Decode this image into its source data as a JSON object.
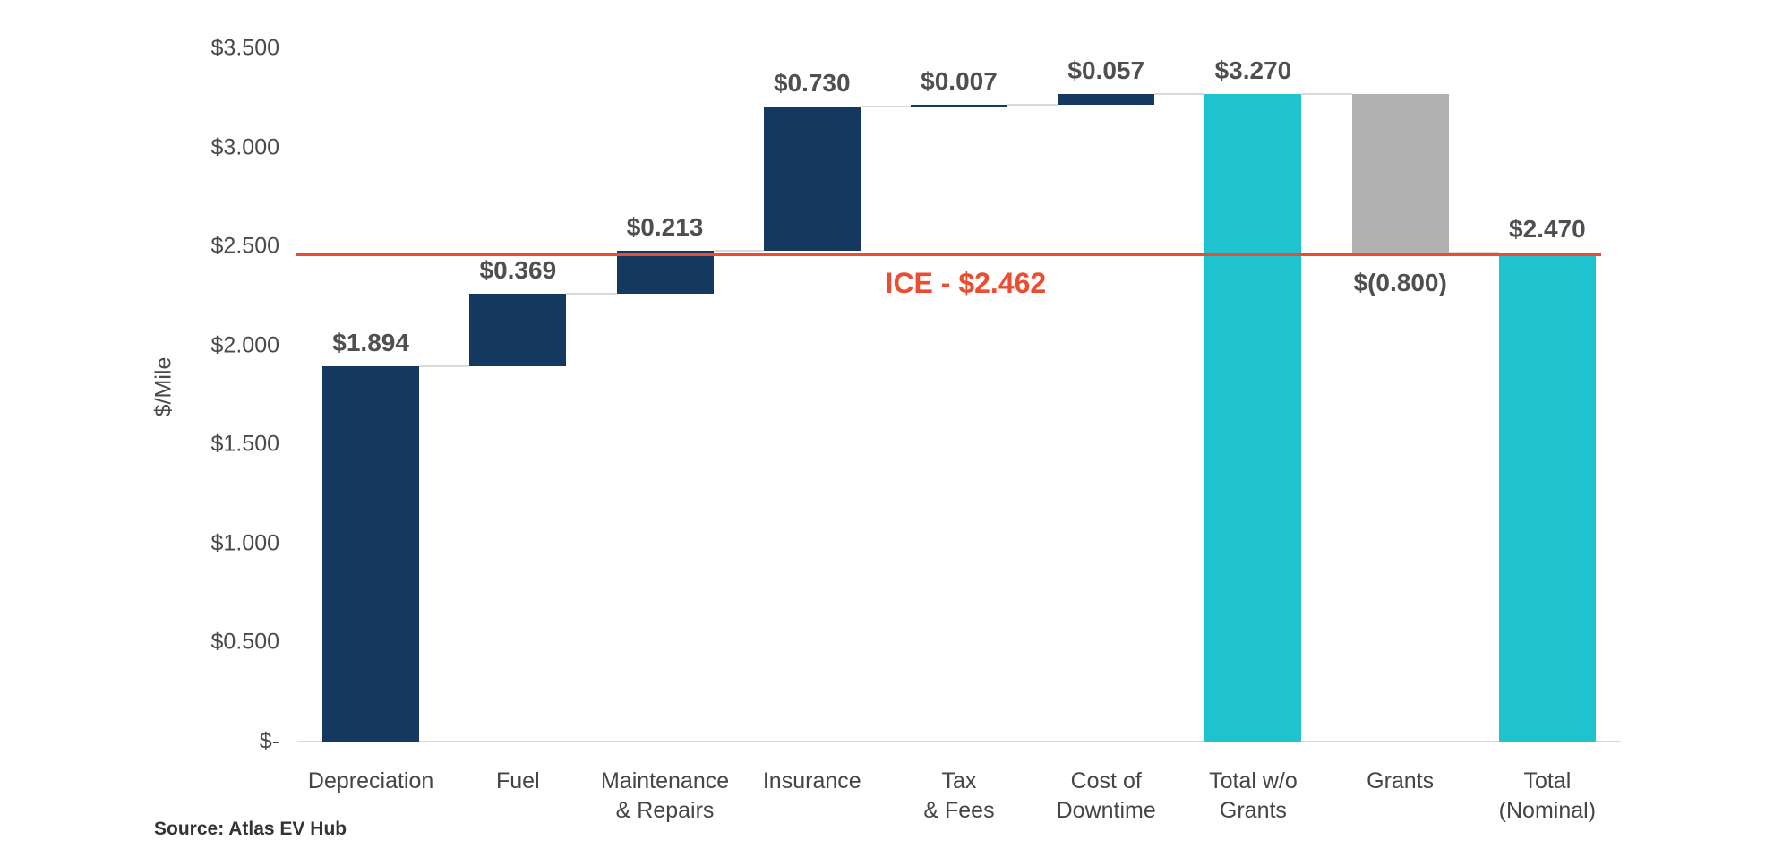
{
  "chart_data": {
    "type": "bar",
    "subtype": "waterfall",
    "ylabel": "$/Mile",
    "ylim": [
      0,
      3.5
    ],
    "grid": false,
    "y_ticks": [
      {
        "value": 3.5,
        "label": "$3.500"
      },
      {
        "value": 3.0,
        "label": "$3.000"
      },
      {
        "value": 2.5,
        "label": "$2.500"
      },
      {
        "value": 2.0,
        "label": "$2.000"
      },
      {
        "value": 1.5,
        "label": "$1.500"
      },
      {
        "value": 1.0,
        "label": "$1.000"
      },
      {
        "value": 0.5,
        "label": "$0.500"
      },
      {
        "value": 0.0,
        "label": "$-"
      }
    ],
    "bars": [
      {
        "category": "Depreciation",
        "label": "$1.894",
        "value": 1.894,
        "start": 0,
        "end": 1.894,
        "color": "navy",
        "label_pos": "above",
        "connect": 1.894
      },
      {
        "category": "Fuel",
        "label": "$0.369",
        "value": 0.369,
        "start": 1.894,
        "end": 2.263,
        "color": "navy",
        "label_pos": "above",
        "connect": 2.263
      },
      {
        "category": "Maintenance\n& Repairs",
        "label": "$0.213",
        "value": 0.213,
        "start": 2.263,
        "end": 2.476,
        "color": "navy",
        "label_pos": "above",
        "connect": 2.476
      },
      {
        "category": "Insurance",
        "label": "$0.730",
        "value": 0.73,
        "start": 2.476,
        "end": 3.206,
        "color": "navy",
        "label_pos": "above",
        "connect": 3.206
      },
      {
        "category": "Tax\n& Fees",
        "label": "$0.007",
        "value": 0.007,
        "start": 3.206,
        "end": 3.213,
        "color": "navy",
        "label_pos": "above",
        "connect": 3.213
      },
      {
        "category": "Cost of\nDowntime",
        "label": "$0.057",
        "value": 0.057,
        "start": 3.213,
        "end": 3.27,
        "color": "navy",
        "label_pos": "above",
        "connect": 3.27
      },
      {
        "category": "Total w/o\nGrants",
        "label": "$3.270",
        "value": 3.27,
        "start": 0,
        "end": 3.27,
        "color": "cyan",
        "label_pos": "above",
        "connect": 3.27
      },
      {
        "category": "Grants",
        "label": "$(0.800)",
        "value": -0.8,
        "start": 3.27,
        "end": 2.47,
        "color": "gray",
        "label_pos": "below",
        "connect": 2.47
      },
      {
        "category": "Total\n(Nominal)",
        "label": "$2.470",
        "value": 2.47,
        "start": 0,
        "end": 2.47,
        "color": "cyan",
        "label_pos": "above",
        "connect": null
      }
    ],
    "reference_line": {
      "value": 2.462,
      "label": "ICE - $2.462",
      "color": "#ea4d31"
    },
    "colors": {
      "navy": "#15395e",
      "cyan": "#1fc3d0",
      "gray": "#b1b1b1"
    }
  },
  "source": "Source: Atlas EV Hub"
}
